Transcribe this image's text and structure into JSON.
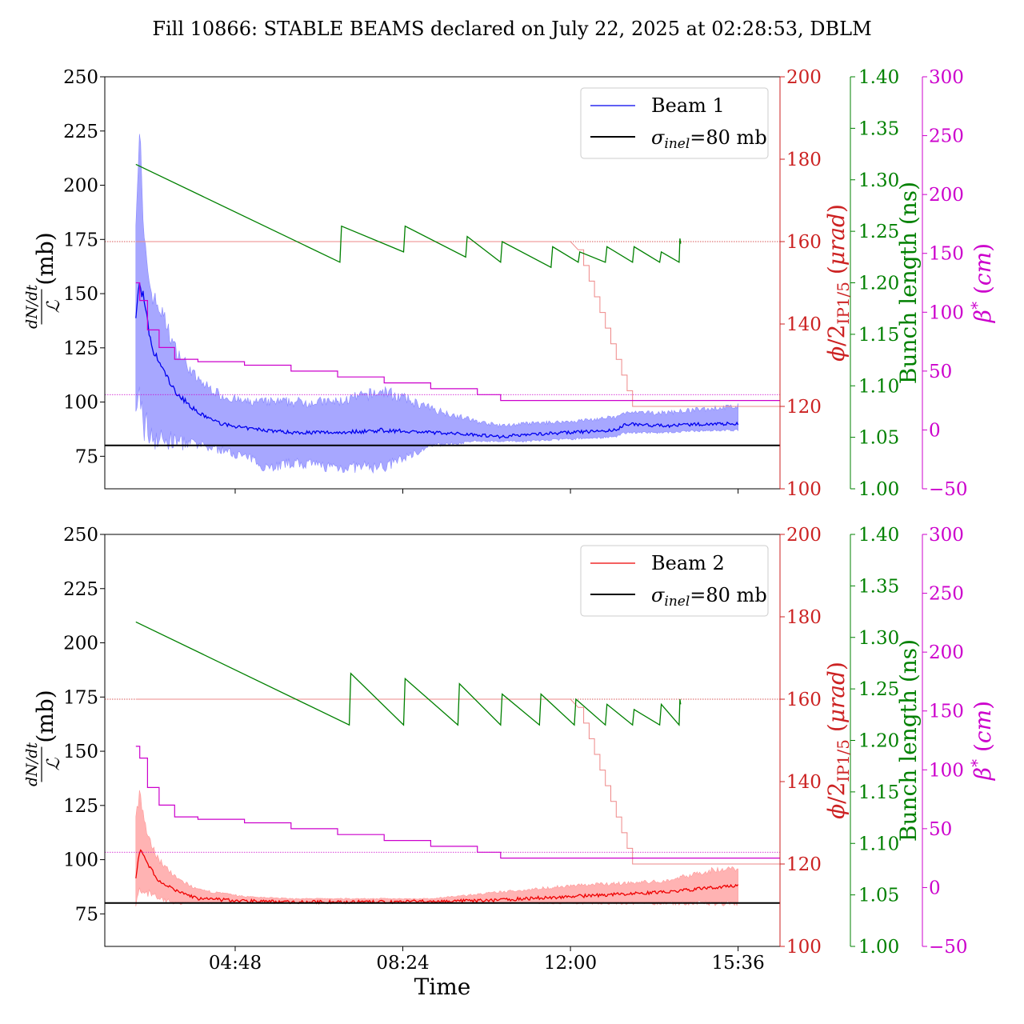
{
  "title": "Fill 10866: STABLE BEAMS declared on July 22, 2025 at 02:28:53, DBLM",
  "x_label": "Time",
  "x_ticks": [
    "04:48",
    "08:24",
    "12:00",
    "15:36"
  ],
  "left_label": "dN/dt / ℒ (mb)",
  "axis_labels": {
    "red": "ϕ/2IP1/5 (μrad)",
    "green": "Bunch length (ns)",
    "magenta": "β* (cm)"
  },
  "colors": {
    "beam1": "#0000ee",
    "beam1_band": "#8a8aff",
    "beam2": "#ee0000",
    "beam2_band": "#ff9999",
    "crossing": "#cc2222",
    "bunch": "#008000",
    "beta": "#cc00cc",
    "sigma": "#000000"
  },
  "chart_data": [
    {
      "type": "line",
      "panel": "top",
      "x_range": [
        "02:00",
        "16:30"
      ],
      "left_axis": {
        "label": "dN/dt / ℒ (mb)",
        "range": [
          60,
          250
        ],
        "ticks": [
          75,
          100,
          125,
          150,
          175,
          200,
          225,
          250
        ]
      },
      "red_axis": {
        "label": "ϕ/2IP1/5 (μrad)",
        "range": [
          100,
          200
        ],
        "ticks": [
          100,
          120,
          140,
          160,
          180,
          200
        ]
      },
      "green_axis": {
        "label": "Bunch length (ns)",
        "range": [
          1.0,
          1.4
        ],
        "ticks": [
          "1.00",
          "1.05",
          "1.10",
          "1.15",
          "1.20",
          "1.25",
          "1.30",
          "1.35",
          "1.40"
        ]
      },
      "magenta_axis": {
        "label": "β* (cm)",
        "range": [
          -50,
          300
        ],
        "ticks": [
          -50,
          0,
          50,
          100,
          150,
          200,
          250,
          300
        ]
      },
      "legend": [
        "Beam 1",
        "σinel=80 mb"
      ],
      "sigma_inel": 80,
      "beam": {
        "name": "Beam 1",
        "t": [
          "02:40",
          "02:45",
          "02:50",
          "03:00",
          "03:15",
          "03:30",
          "04:00",
          "04:30",
          "05:00",
          "05:30",
          "06:00",
          "07:00",
          "08:00",
          "09:00",
          "10:00",
          "10:30",
          "11:00",
          "12:00",
          "13:00",
          "13:10",
          "14:00",
          "15:00",
          "15:36"
        ],
        "mean": [
          140,
          155,
          148,
          125,
          115,
          105,
          95,
          90,
          88,
          87,
          86,
          86,
          87,
          86,
          85,
          84,
          85,
          86,
          87,
          90,
          89,
          90,
          90
        ],
        "upper": [
          190,
          225,
          175,
          150,
          140,
          125,
          110,
          103,
          100,
          100,
          100,
          100,
          105,
          97,
          91,
          89,
          90,
          91,
          93,
          95,
          95,
          97,
          98
        ],
        "lower": [
          88,
          105,
          90,
          85,
          82,
          82,
          80,
          78,
          75,
          70,
          72,
          70,
          70,
          80,
          82,
          82,
          82,
          83,
          84,
          86,
          86,
          87,
          87
        ]
      },
      "crossing_angle": {
        "t": [
          "02:40",
          "12:00",
          "12:10",
          "13:20",
          "16:30"
        ],
        "v": [
          160,
          160,
          158,
          120,
          120
        ]
      },
      "crossing_ref": 160,
      "bunch_length": {
        "t": [
          "02:40",
          "07:03",
          "07:05",
          "08:25",
          "08:27",
          "09:45",
          "09:47",
          "10:30",
          "10:32",
          "11:35",
          "11:37",
          "12:10",
          "12:12",
          "12:45",
          "12:47",
          "13:20",
          "13:22",
          "13:55",
          "13:57",
          "14:20",
          "14:21",
          "14:22"
        ],
        "v": [
          1.315,
          1.22,
          1.255,
          1.23,
          1.255,
          1.225,
          1.245,
          1.22,
          1.24,
          1.215,
          1.235,
          1.22,
          1.23,
          1.22,
          1.235,
          1.22,
          1.235,
          1.22,
          1.23,
          1.22,
          1.243,
          1.238
        ]
      },
      "beta_star": {
        "t": [
          "02:40",
          "02:45",
          "02:55",
          "03:10",
          "03:30",
          "04:00",
          "05:00",
          "06:00",
          "07:00",
          "08:00",
          "09:00",
          "10:00",
          "10:30",
          "16:30"
        ],
        "v": [
          125,
          110,
          85,
          70,
          60,
          58,
          55,
          50,
          45,
          40,
          35,
          30,
          25,
          25
        ]
      },
      "beta_ref": 30
    },
    {
      "type": "line",
      "panel": "bottom",
      "x_range": [
        "02:00",
        "16:30"
      ],
      "left_axis": {
        "label": "dN/dt / ℒ (mb)",
        "range": [
          60,
          250
        ],
        "ticks": [
          75,
          100,
          125,
          150,
          175,
          200,
          225,
          250
        ]
      },
      "red_axis": {
        "label": "ϕ/2IP1/5 (μrad)",
        "range": [
          100,
          200
        ],
        "ticks": [
          100,
          120,
          140,
          160,
          180,
          200
        ]
      },
      "green_axis": {
        "label": "Bunch length (ns)",
        "range": [
          1.0,
          1.4
        ],
        "ticks": [
          "1.00",
          "1.05",
          "1.10",
          "1.15",
          "1.20",
          "1.25",
          "1.30",
          "1.35",
          "1.40"
        ]
      },
      "magenta_axis": {
        "label": "β* (cm)",
        "range": [
          -50,
          300
        ],
        "ticks": [
          -50,
          0,
          50,
          100,
          150,
          200,
          250,
          300
        ]
      },
      "legend": [
        "Beam 2",
        "σinel=80 mb"
      ],
      "sigma_inel": 80,
      "beam": {
        "name": "Beam 2",
        "t": [
          "02:40",
          "02:45",
          "02:55",
          "03:10",
          "03:30",
          "04:00",
          "05:00",
          "06:00",
          "07:00",
          "08:00",
          "09:00",
          "10:00",
          "11:00",
          "12:00",
          "13:00",
          "14:00",
          "15:00",
          "15:36"
        ],
        "mean": [
          92,
          105,
          98,
          90,
          86,
          82,
          81,
          80.5,
          80.5,
          80.5,
          80.8,
          81,
          82,
          83,
          84,
          85,
          87,
          88
        ],
        "upper": [
          120,
          130,
          110,
          100,
          92,
          86,
          83,
          82,
          82,
          82,
          82,
          84,
          86,
          88,
          89,
          90,
          95,
          96
        ],
        "lower": [
          80,
          88,
          85,
          82,
          80,
          80,
          80,
          80,
          80,
          80,
          80,
          80,
          80,
          80,
          80,
          80,
          80,
          80
        ]
      },
      "crossing_angle": {
        "t": [
          "02:40",
          "12:00",
          "12:10",
          "13:20",
          "16:30"
        ],
        "v": [
          160,
          160,
          158,
          120,
          120
        ]
      },
      "crossing_ref": 160,
      "bunch_length": {
        "t": [
          "02:40",
          "07:15",
          "07:17",
          "08:25",
          "08:27",
          "09:35",
          "09:37",
          "10:30",
          "10:32",
          "11:20",
          "11:22",
          "12:05",
          "12:07",
          "12:45",
          "12:47",
          "13:20",
          "13:22",
          "13:55",
          "13:57",
          "14:20",
          "14:21",
          "14:22"
        ],
        "v": [
          1.315,
          1.215,
          1.265,
          1.215,
          1.26,
          1.215,
          1.255,
          1.215,
          1.245,
          1.215,
          1.245,
          1.215,
          1.24,
          1.215,
          1.235,
          1.215,
          1.23,
          1.215,
          1.235,
          1.215,
          1.24,
          1.235
        ]
      },
      "beta_star": {
        "t": [
          "02:40",
          "02:45",
          "02:55",
          "03:10",
          "03:30",
          "04:00",
          "05:00",
          "06:00",
          "07:00",
          "08:00",
          "09:00",
          "10:00",
          "10:30",
          "16:30"
        ],
        "v": [
          120,
          110,
          85,
          70,
          60,
          58,
          55,
          50,
          45,
          40,
          35,
          30,
          25,
          25
        ]
      },
      "beta_ref": 30
    }
  ]
}
